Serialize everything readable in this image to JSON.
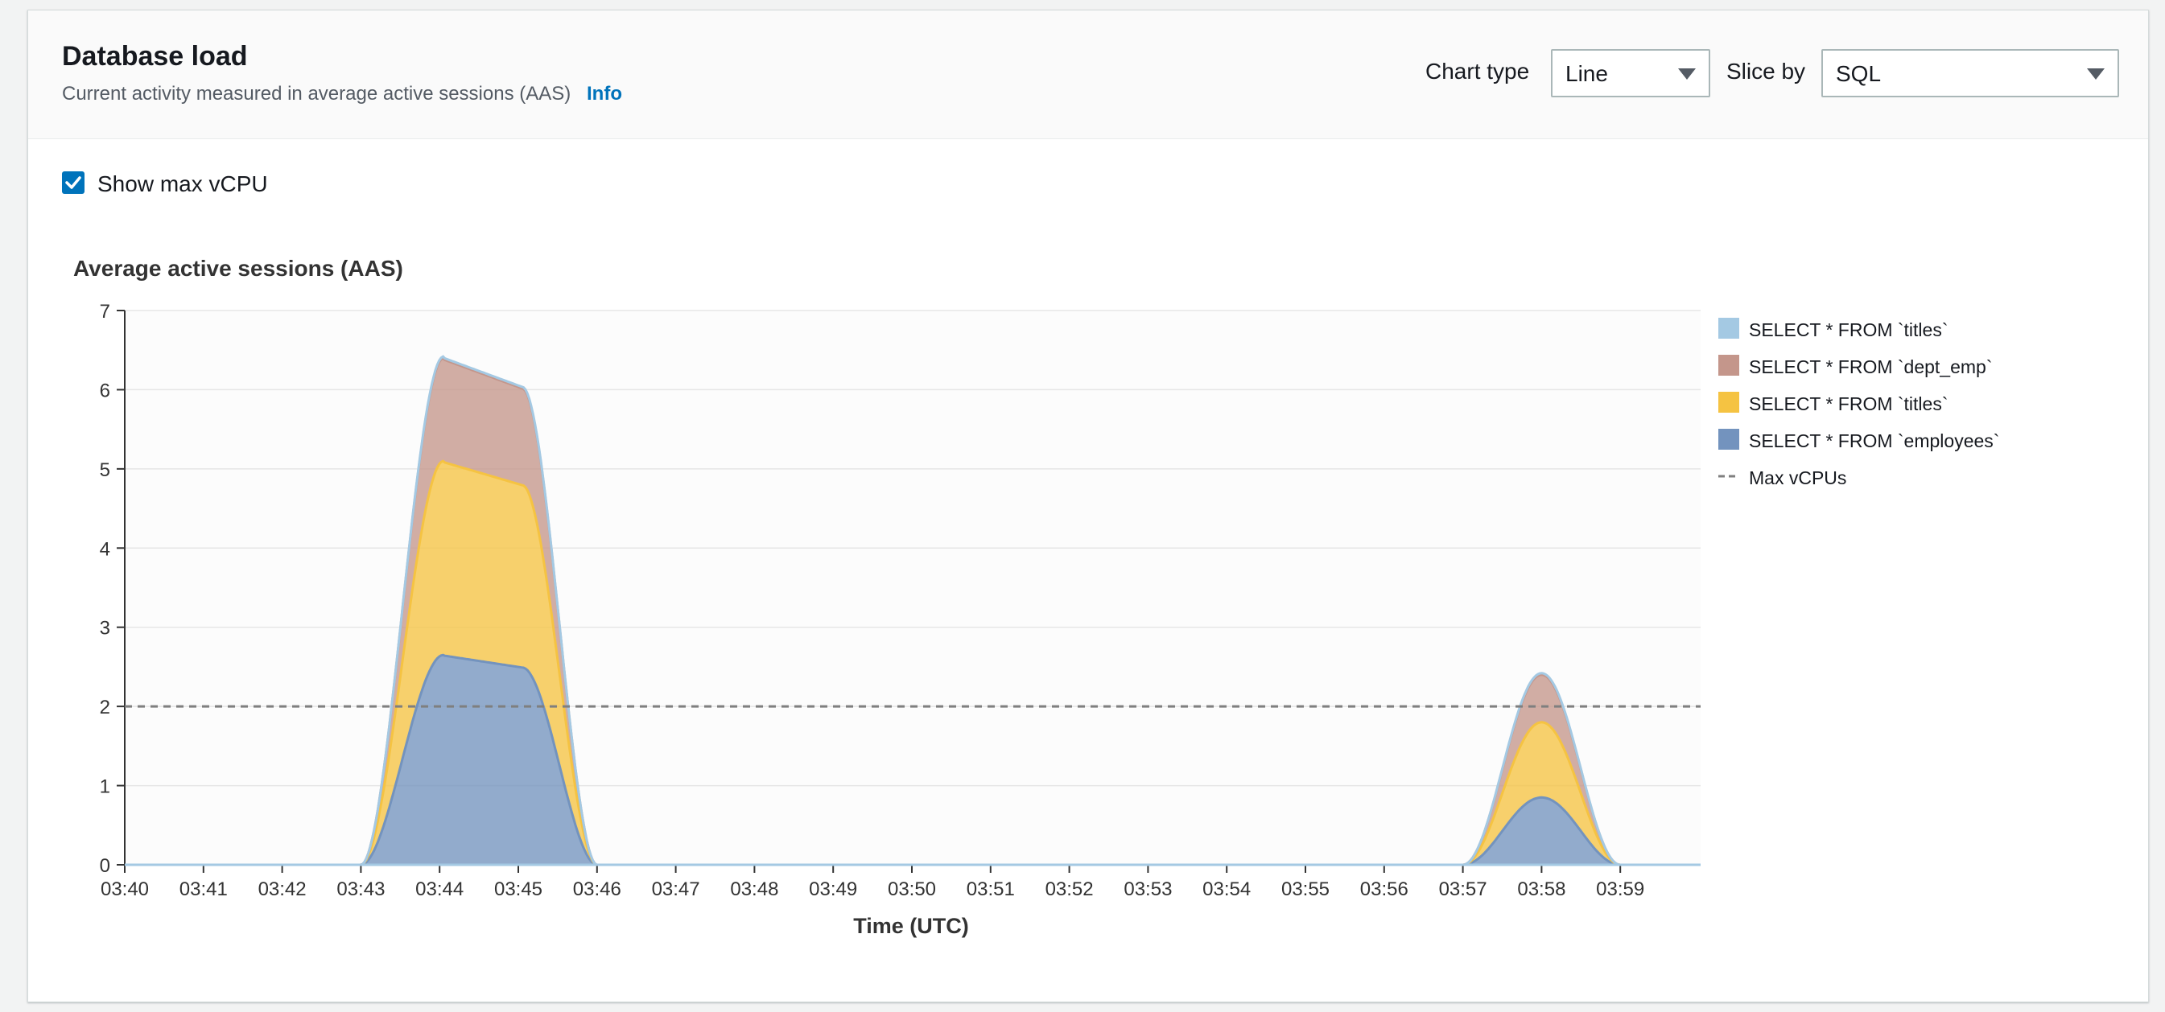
{
  "panel": {
    "title": "Database load",
    "description": "Current activity measured in average active sessions (AAS)",
    "info_link": "Info"
  },
  "controls": {
    "chart_type_label": "Chart type",
    "chart_type_value": "Line",
    "slice_by_label": "Slice by",
    "slice_by_value": "SQL",
    "show_max_vcpu_label": "Show max vCPU",
    "show_max_vcpu_checked": true
  },
  "icons": {
    "checkbox": "check-icon",
    "dropdown": "caret-down-icon"
  },
  "chart_data": {
    "type": "area",
    "stacked": true,
    "title": "Average active sessions (AAS)",
    "xlabel": "Time (UTC)",
    "ylabel": "",
    "ylim": [
      0,
      7
    ],
    "yticks": [
      0,
      1,
      2,
      3,
      4,
      5,
      6,
      7
    ],
    "x": [
      "03:40",
      "03:41",
      "03:42",
      "03:43",
      "03:44",
      "03:45",
      "03:46",
      "03:47",
      "03:48",
      "03:49",
      "03:50",
      "03:51",
      "03:52",
      "03:53",
      "03:54",
      "03:55",
      "03:56",
      "03:57",
      "03:58",
      "03:59"
    ],
    "grid": true,
    "legend_position": "right",
    "series": [
      {
        "name": "SELECT * FROM `employees`",
        "color": "#7393be",
        "peaks": [
          {
            "start": "03:43",
            "rise_end": "03:44",
            "fall_start": "03:45",
            "end": "03:46",
            "value": 2.65
          },
          {
            "start": "03:57",
            "peak": "03:58",
            "end": "03:59",
            "value": 0.85
          }
        ]
      },
      {
        "name": "SELECT * FROM `titles`",
        "color": "#f5c342",
        "peaks": [
          {
            "start": "03:43",
            "rise_end": "03:44",
            "fall_start": "03:45",
            "end": "03:46",
            "value": 2.45
          },
          {
            "start": "03:57",
            "peak": "03:58",
            "end": "03:59",
            "value": 0.95
          }
        ]
      },
      {
        "name": "SELECT * FROM `dept_emp`",
        "color": "#c4968b",
        "peaks": [
          {
            "start": "03:43",
            "rise_end": "03:44",
            "fall_start": "03:45",
            "end": "03:46",
            "value": 1.3
          },
          {
            "start": "03:57",
            "peak": "03:58",
            "end": "03:59",
            "value": 0.6
          }
        ]
      },
      {
        "name": "SELECT * FROM `titles`",
        "color": "#a4c9e3",
        "peaks": [
          {
            "start": "03:43",
            "rise_end": "03:44",
            "fall_start": "03:45",
            "end": "03:46",
            "value": 0.02
          },
          {
            "start": "03:57",
            "peak": "03:58",
            "end": "03:59",
            "value": 0.02
          }
        ]
      }
    ],
    "legend": [
      {
        "label": "SELECT * FROM `titles`",
        "color": "#a4c9e3",
        "style": "swatch"
      },
      {
        "label": "SELECT * FROM `dept_emp`",
        "color": "#c4968b",
        "style": "swatch"
      },
      {
        "label": "SELECT * FROM `titles`",
        "color": "#f5c342",
        "style": "swatch"
      },
      {
        "label": "SELECT * FROM `employees`",
        "color": "#7393be",
        "style": "swatch"
      },
      {
        "label": "Max vCPUs",
        "color": "#7f7f7f",
        "style": "dashed-line"
      }
    ],
    "max_vcpu": 2
  }
}
